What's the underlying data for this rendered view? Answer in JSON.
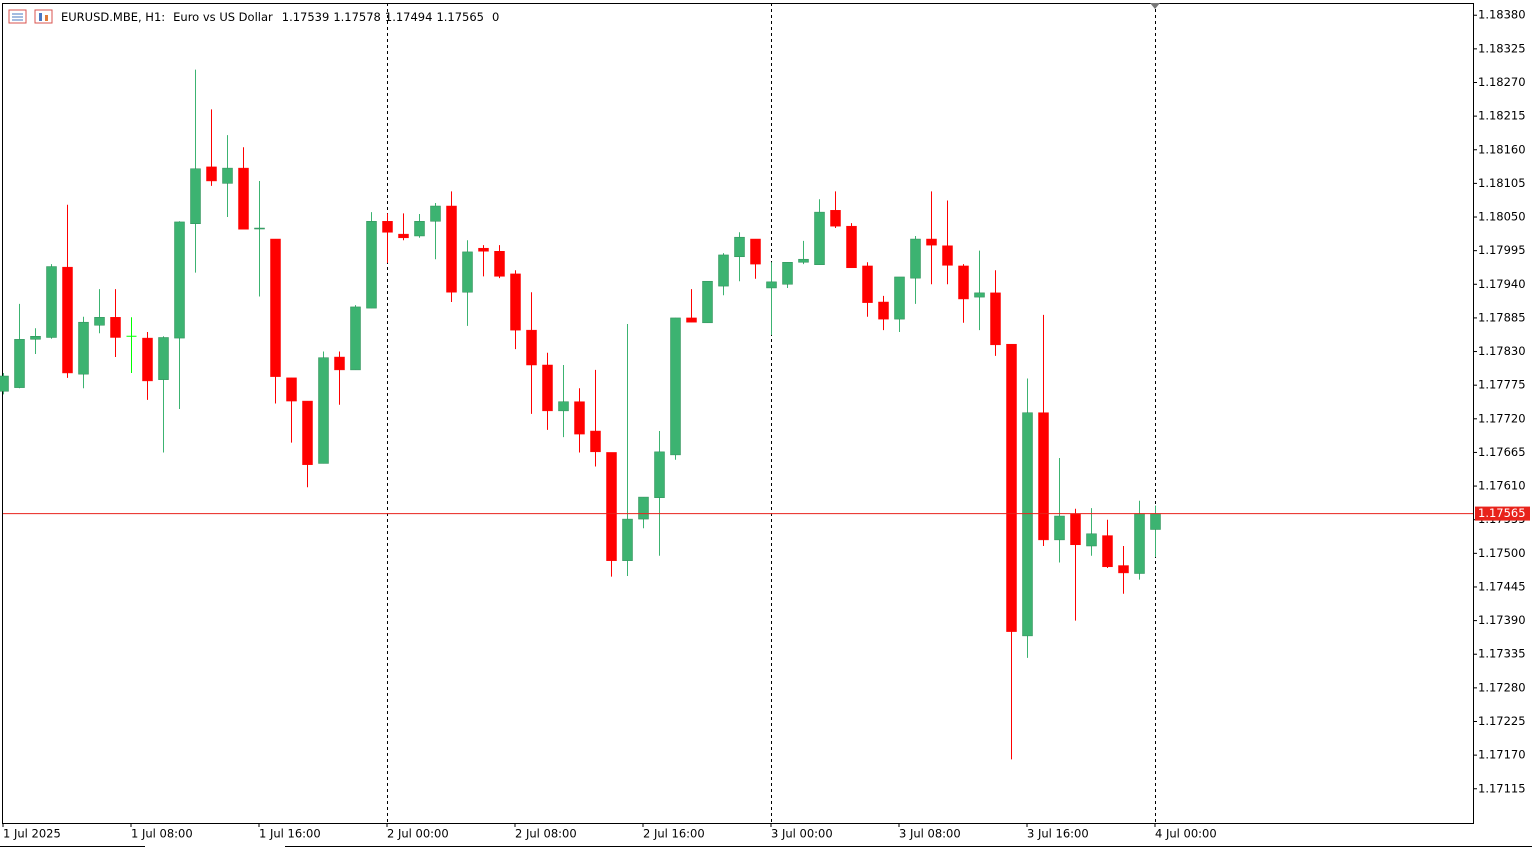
{
  "chart_data": {
    "type": "candlestick",
    "header": {
      "symbol": "EURUSD.MBE, H1:",
      "description": "Euro vs US Dollar",
      "ohlc": [
        1.17539,
        1.17578,
        1.17494,
        1.17565
      ],
      "volume": 0
    },
    "categories": [
      "1 Jul 2025",
      null,
      null,
      null,
      null,
      null,
      null,
      null,
      "1 Jul 08:00",
      null,
      null,
      null,
      null,
      null,
      null,
      null,
      "1 Jul 16:00",
      null,
      null,
      null,
      null,
      null,
      null,
      null,
      "2 Jul 00:00",
      null,
      null,
      null,
      null,
      null,
      null,
      null,
      "2 Jul 08:00",
      null,
      null,
      null,
      null,
      null,
      null,
      null,
      "2 Jul 16:00",
      null,
      null,
      null,
      null,
      null,
      null,
      null,
      "3 Jul 00:00",
      null,
      null,
      null,
      null,
      null,
      null,
      null,
      "3 Jul 08:00",
      null,
      null,
      null,
      null,
      null,
      null,
      null,
      "3 Jul 16:00",
      null,
      null,
      null,
      null,
      null,
      null,
      null,
      "4 Jul 00:00"
    ],
    "open": [
      1.17765,
      1.17771,
      1.1785,
      1.17853,
      1.17968,
      1.17793,
      1.17873,
      1.17886,
      1.17855,
      1.17852,
      1.17784,
      1.17852,
      1.18039,
      1.18132,
      1.18105,
      1.1813,
      1.18031,
      1.18014,
      1.17787,
      1.17749,
      1.17647,
      1.17821,
      1.178,
      1.17901,
      1.18043,
      1.18022,
      1.18019,
      1.18043,
      1.18068,
      1.17927,
      1.17999,
      1.17994,
      1.17957,
      1.17865,
      1.17808,
      1.17733,
      1.17748,
      1.177,
      1.17665,
      1.17488,
      1.17556,
      1.17591,
      1.17661,
      1.17885,
      1.17877,
      1.17937,
      1.17985,
      1.18014,
      1.17934,
      1.1794,
      1.17976,
      1.17972,
      1.18061,
      1.18035,
      1.1797,
      1.17911,
      1.17883,
      1.1795,
      1.18014,
      1.18003,
      1.1797,
      1.17919,
      1.17926,
      1.17842,
      1.17365,
      1.1773,
      1.17522,
      1.17564,
      1.17512,
      1.17529,
      1.1748,
      1.17467,
      1.17539
    ],
    "high": [
      1.17795,
      1.17908,
      1.17868,
      1.17973,
      1.1807,
      1.17887,
      1.17932,
      1.17932,
      1.17886,
      1.17862,
      1.17855,
      1.18043,
      1.18291,
      1.18226,
      1.18184,
      1.18164,
      1.18109,
      1.18014,
      1.17787,
      1.17749,
      1.1783,
      1.1783,
      1.17906,
      1.18058,
      1.18056,
      1.18056,
      1.18055,
      1.18073,
      1.18092,
      1.18012,
      1.18004,
      1.18004,
      1.17963,
      1.17927,
      1.17828,
      1.17808,
      1.1777,
      1.178,
      1.17665,
      1.17875,
      1.17592,
      1.177,
      1.17885,
      1.17932,
      1.17945,
      1.17991,
      1.18025,
      1.18014,
      1.17976,
      1.17976,
      1.18011,
      1.18079,
      1.18092,
      1.1804,
      1.17976,
      1.17921,
      1.17952,
      1.18019,
      1.18092,
      1.18077,
      1.17973,
      1.17995,
      1.17963,
      1.17842,
      1.17786,
      1.1789,
      1.17656,
      1.17573,
      1.17574,
      1.17555,
      1.17512,
      1.17586,
      1.17578
    ],
    "low": [
      1.1776,
      1.1777,
      1.17826,
      1.17851,
      1.17787,
      1.1777,
      1.1786,
      1.17821,
      1.17795,
      1.17751,
      1.17665,
      1.17736,
      1.17959,
      1.18101,
      1.1805,
      1.1803,
      1.1792,
      1.17745,
      1.17681,
      1.17608,
      1.17647,
      1.17743,
      1.178,
      1.17901,
      1.17975,
      1.18012,
      1.18016,
      1.17981,
      1.17911,
      1.17872,
      1.17953,
      1.1795,
      1.17834,
      1.17728,
      1.17702,
      1.1769,
      1.17665,
      1.17642,
      1.17462,
      1.17463,
      1.17541,
      1.17496,
      1.17653,
      1.17878,
      1.17877,
      1.17922,
      1.17945,
      1.17949,
      1.17857,
      1.17934,
      1.17973,
      1.17972,
      1.18032,
      1.17967,
      1.17887,
      1.17865,
      1.17862,
      1.17908,
      1.1794,
      1.1794,
      1.17877,
      1.17865,
      1.17823,
      1.17163,
      1.17329,
      1.17512,
      1.17485,
      1.1739,
      1.17496,
      1.17476,
      1.17434,
      1.17457,
      1.17494
    ],
    "close": [
      1.1779,
      1.1785,
      1.17855,
      1.17969,
      1.17795,
      1.17878,
      1.17886,
      1.17853,
      1.17855,
      1.17782,
      1.17853,
      1.18042,
      1.18129,
      1.18109,
      1.1813,
      1.1803,
      1.18032,
      1.17789,
      1.17749,
      1.17645,
      1.1782,
      1.178,
      1.17903,
      1.18043,
      1.18025,
      1.18016,
      1.18043,
      1.18068,
      1.17927,
      1.17993,
      1.17994,
      1.17953,
      1.17865,
      1.17808,
      1.17733,
      1.17748,
      1.17695,
      1.17666,
      1.17488,
      1.17556,
      1.17592,
      1.17666,
      1.17885,
      1.17878,
      1.17945,
      1.17988,
      1.18017,
      1.17973,
      1.17944,
      1.17976,
      1.17981,
      1.18058,
      1.18035,
      1.17967,
      1.1791,
      1.17883,
      1.17952,
      1.18014,
      1.18004,
      1.17971,
      1.17916,
      1.17926,
      1.17841,
      1.17372,
      1.1773,
      1.17522,
      1.17561,
      1.17514,
      1.17532,
      1.17478,
      1.17468,
      1.17565,
      1.17565
    ],
    "up_color": "#3cb371",
    "down_color": "#ff0000",
    "doji_color": "#00ff00",
    "current_price": 1.17565,
    "current_price_color": "#e8231b",
    "ylim": [
      1.17059,
      1.184
    ],
    "yticks": [
      {
        "value": 1.1838,
        "label": "1.18380"
      },
      1.18325,
      {
        "value": 1.1827,
        "label": "1.18270"
      },
      1.18215,
      {
        "value": 1.1816,
        "label": "1.18160"
      },
      1.18105,
      {
        "value": 1.1805,
        "label": "1.18050"
      },
      1.17995,
      {
        "value": 1.1794,
        "label": "1.17940"
      },
      1.17885,
      {
        "value": 1.1783,
        "label": "1.17830"
      },
      1.17775,
      {
        "value": 1.1772,
        "label": "1.17720"
      },
      1.17665,
      {
        "value": 1.1761,
        "label": "1.17610"
      },
      1.17555,
      {
        "value": 1.175,
        "label": "1.17500"
      },
      1.17445,
      {
        "value": 1.1739,
        "label": "1.17390"
      },
      1.17335,
      {
        "value": 1.1728,
        "label": "1.17280"
      },
      1.17225,
      {
        "value": 1.1717,
        "label": "1.17170"
      },
      1.17115
    ],
    "grid": false
  }
}
